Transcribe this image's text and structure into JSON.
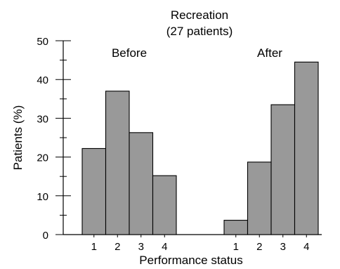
{
  "chart_data": {
    "type": "bar",
    "title": "Recreation",
    "subtitle": "(27 patients)",
    "xlabel": "Performance status",
    "ylabel": "Patients (%)",
    "ylim": [
      0,
      50
    ],
    "yticks": [
      0,
      10,
      20,
      30,
      40,
      50
    ],
    "grid": false,
    "legend": "none",
    "bar_color": "#999999",
    "groups": [
      {
        "name": "Before",
        "categories": [
          "1",
          "2",
          "3",
          "4"
        ],
        "values": [
          22.2,
          37.0,
          26.3,
          15.2
        ]
      },
      {
        "name": "After",
        "categories": [
          "1",
          "2",
          "3",
          "4"
        ],
        "values": [
          3.7,
          18.7,
          33.5,
          44.5
        ]
      }
    ]
  }
}
